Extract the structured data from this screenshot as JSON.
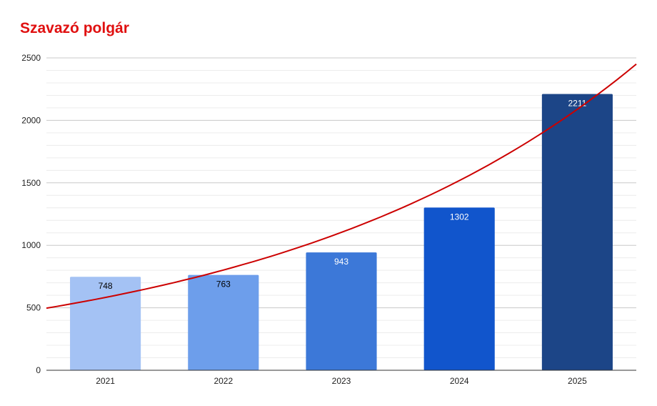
{
  "chart_data": {
    "type": "bar",
    "title": "Szavazó polgár",
    "categories": [
      "2021",
      "2022",
      "2023",
      "2024",
      "2025"
    ],
    "values": [
      748,
      763,
      943,
      1302,
      2211
    ],
    "bar_colors": [
      "#a4c2f4",
      "#6d9eeb",
      "#3c78d8",
      "#1155cc",
      "#1c4587"
    ],
    "data_label_colors": [
      "#000000",
      "#000000",
      "#ffffff",
      "#ffffff",
      "#ffffff"
    ],
    "ylim": [
      0,
      2500
    ],
    "yticks": [
      0,
      500,
      1000,
      1500,
      2000,
      2500
    ],
    "grid": true,
    "legend": "none",
    "trendline": {
      "type": "exponential",
      "color": "#cc0000",
      "start": 497,
      "end": 2450
    },
    "title_color": "#e01010"
  }
}
